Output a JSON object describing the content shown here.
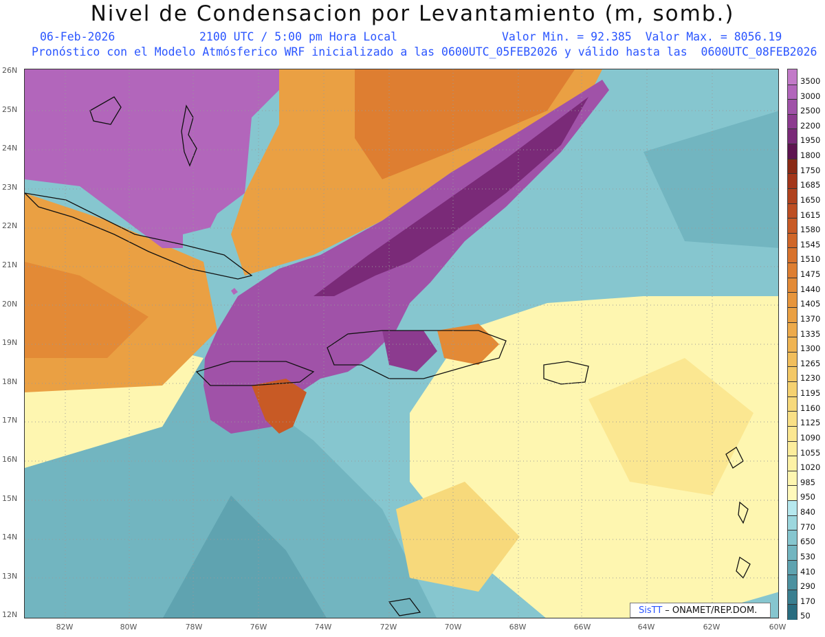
{
  "header": {
    "title": "Nivel de Condensacion por Levantamiento (m, somb.)",
    "date": "06-Feb-2026",
    "time": "2100 UTC / 5:00 pm Hora Local",
    "minmax": "Valor Min. = 92.385  Valor Max. = 8056.19",
    "model_line": "Pronóstico con el Modelo Atmósferico WRF inicializado a las 0600UTC_05FEB2026 y válido hasta las  0600UTC_08FEB2026"
  },
  "map": {
    "lat_labels": [
      "26N",
      "25N",
      "24N",
      "23N",
      "22N",
      "21N",
      "20N",
      "19N",
      "18N",
      "17N",
      "16N",
      "15N",
      "14N",
      "13N",
      "12N"
    ],
    "lon_labels": [
      "82W",
      "80W",
      "78W",
      "76W",
      "74W",
      "72W",
      "70W",
      "68W",
      "66W",
      "64W",
      "62W",
      "60W"
    ]
  },
  "colorbar": {
    "labels": [
      "3500",
      "3000",
      "2500",
      "2200",
      "1950",
      "1800",
      "1750",
      "1685",
      "1650",
      "1615",
      "1580",
      "1545",
      "1510",
      "1475",
      "1440",
      "1405",
      "1370",
      "1335",
      "1300",
      "1265",
      "1230",
      "1195",
      "1160",
      "1125",
      "1090",
      "1055",
      "1020",
      "985",
      "950",
      "840",
      "770",
      "650",
      "530",
      "410",
      "290",
      "170",
      "50"
    ],
    "colors": [
      "#c27ac8",
      "#b266bb",
      "#a052a8",
      "#8c3b8f",
      "#7a2a78",
      "#5e1450",
      "#8a2a16",
      "#a3361a",
      "#b0421e",
      "#bd4e22",
      "#c85a25",
      "#d06628",
      "#d8722c",
      "#de7e31",
      "#e38a36",
      "#e7953c",
      "#eaa043",
      "#edaa4b",
      "#efb453",
      "#f1be5c",
      "#f3c866",
      "#f5d170",
      "#f7d97b",
      "#f9e086",
      "#fbe791",
      "#fced9c",
      "#fdf2a6",
      "#fef6b0",
      "#fff9bb",
      "#b6e8ee",
      "#9cd7de",
      "#86c6cf",
      "#72b5c0",
      "#5fa3b0",
      "#4c91a0",
      "#3a7f90",
      "#296d80"
    ]
  },
  "credit": {
    "brand": "SisTT",
    "text": "– ONAMET/REP.DOM."
  }
}
